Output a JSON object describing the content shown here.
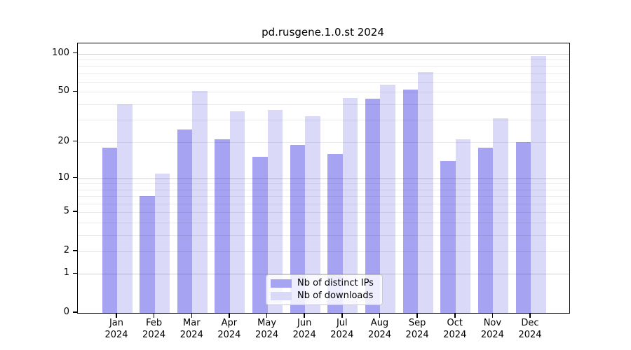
{
  "title": "pd.rusgene.1.0.st 2024",
  "chart_data": {
    "type": "bar",
    "title": "pd.rusgene.1.0.st 2024",
    "months": [
      "Jan",
      "Feb",
      "Mar",
      "Apr",
      "May",
      "Jun",
      "Jul",
      "Aug",
      "Sep",
      "Oct",
      "Nov",
      "Dec"
    ],
    "year": "2024",
    "series": [
      {
        "name": "Nb of distinct IPs",
        "color": "#a6a3f2",
        "values": [
          18,
          7,
          25,
          21,
          15,
          19,
          16,
          44,
          52,
          14,
          18,
          20
        ]
      },
      {
        "name": "Nb of downloads",
        "color": "#dbd9f8",
        "values": [
          40,
          11,
          51,
          35,
          36,
          32,
          45,
          57,
          72,
          21,
          31,
          96
        ]
      }
    ],
    "yscale": "log1p",
    "ylim": [
      0,
      120
    ],
    "yticks": [
      0,
      1,
      2,
      5,
      10,
      20,
      50,
      100
    ],
    "gridlines": {
      "major": [
        1,
        10,
        100
      ],
      "minor": [
        2,
        3,
        4,
        5,
        6,
        7,
        8,
        9,
        20,
        30,
        40,
        50,
        60,
        70,
        80,
        90
      ]
    },
    "xlabel": "",
    "ylabel": "",
    "grid": true,
    "legend_position": "lower center"
  },
  "colors": {
    "background": "#ffffff",
    "spine": "#000000",
    "text": "#000000",
    "grid_major": "rgba(0,0,0,0.18)",
    "grid_minor": "rgba(0,0,0,0.08)",
    "legend_border": "#cccccc",
    "legend_background": "rgba(255,255,255,0.8)"
  }
}
